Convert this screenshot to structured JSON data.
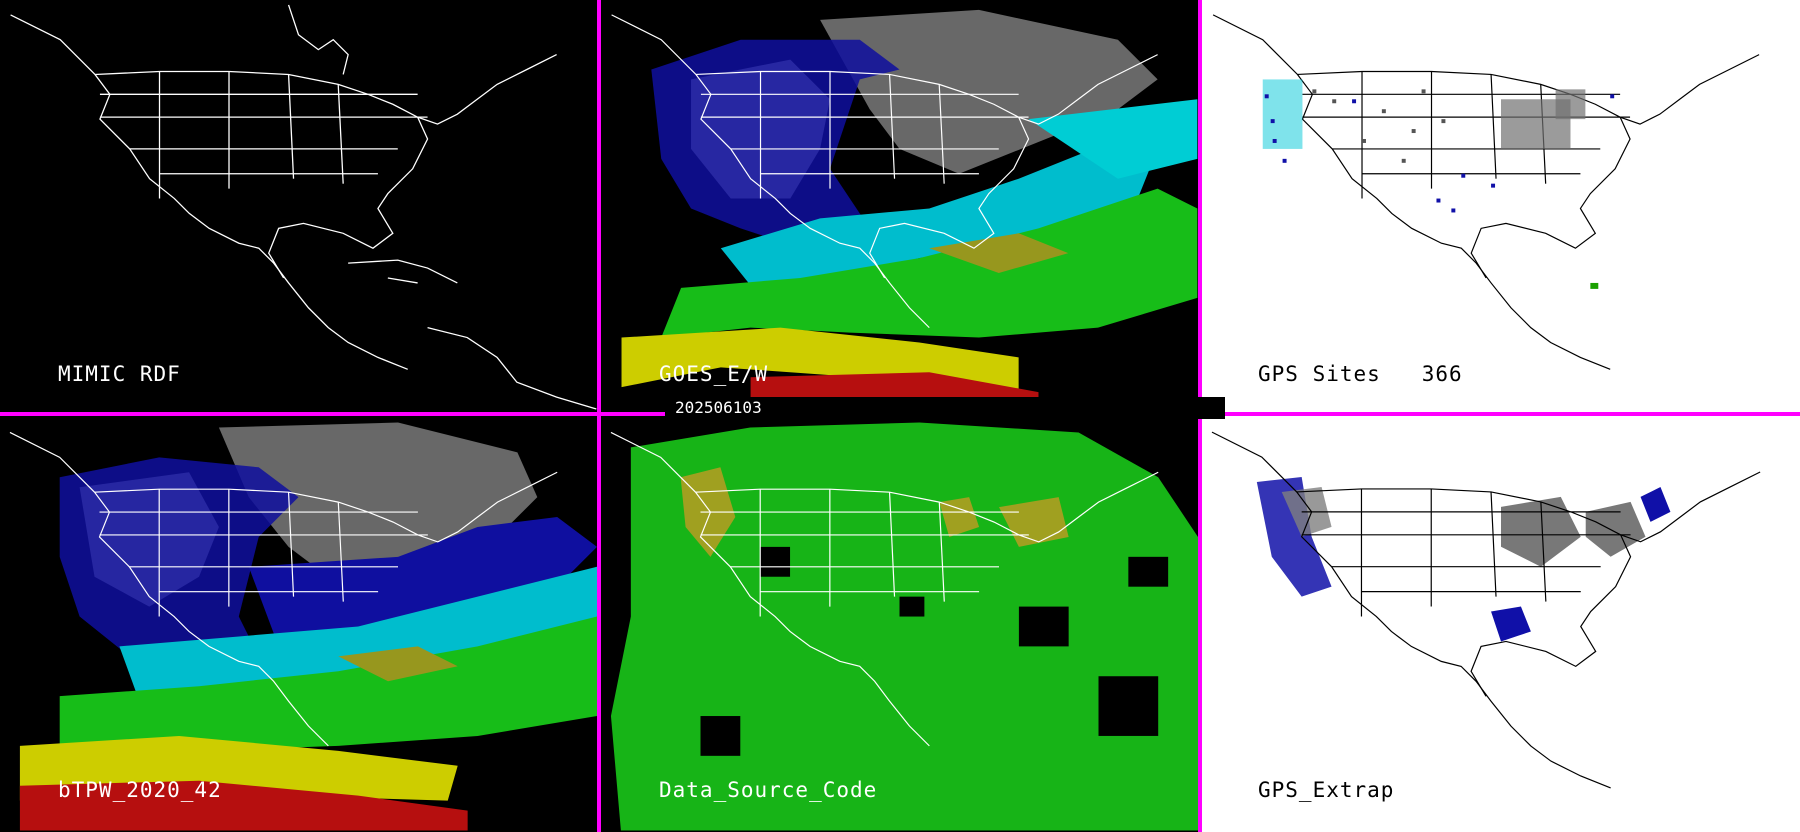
{
  "panels": [
    {
      "label": "MIMIC RDF",
      "bg": "#000000",
      "line": "#ffffff",
      "text": "#ffffff"
    },
    {
      "label": "GOES_E/W",
      "bg": "#000000",
      "line": "#ffffff",
      "text": "#ffffff"
    },
    {
      "label": "GPS Sites   366",
      "bg": "#ffffff",
      "line": "#000000",
      "text": "#000000"
    },
    {
      "label": "bTPW_2020_42",
      "bg": "#000000",
      "line": "#ffffff",
      "text": "#ffffff"
    },
    {
      "label": "Data_Source_Code",
      "bg": "#000000",
      "line": "#ffffff",
      "text": "#ffffff"
    },
    {
      "label": "GPS_Extrap",
      "bg": "#ffffff",
      "line": "#000000",
      "text": "#000000"
    }
  ],
  "timestamp": "202506103",
  "colors": {
    "divider": "#ff00ff"
  }
}
